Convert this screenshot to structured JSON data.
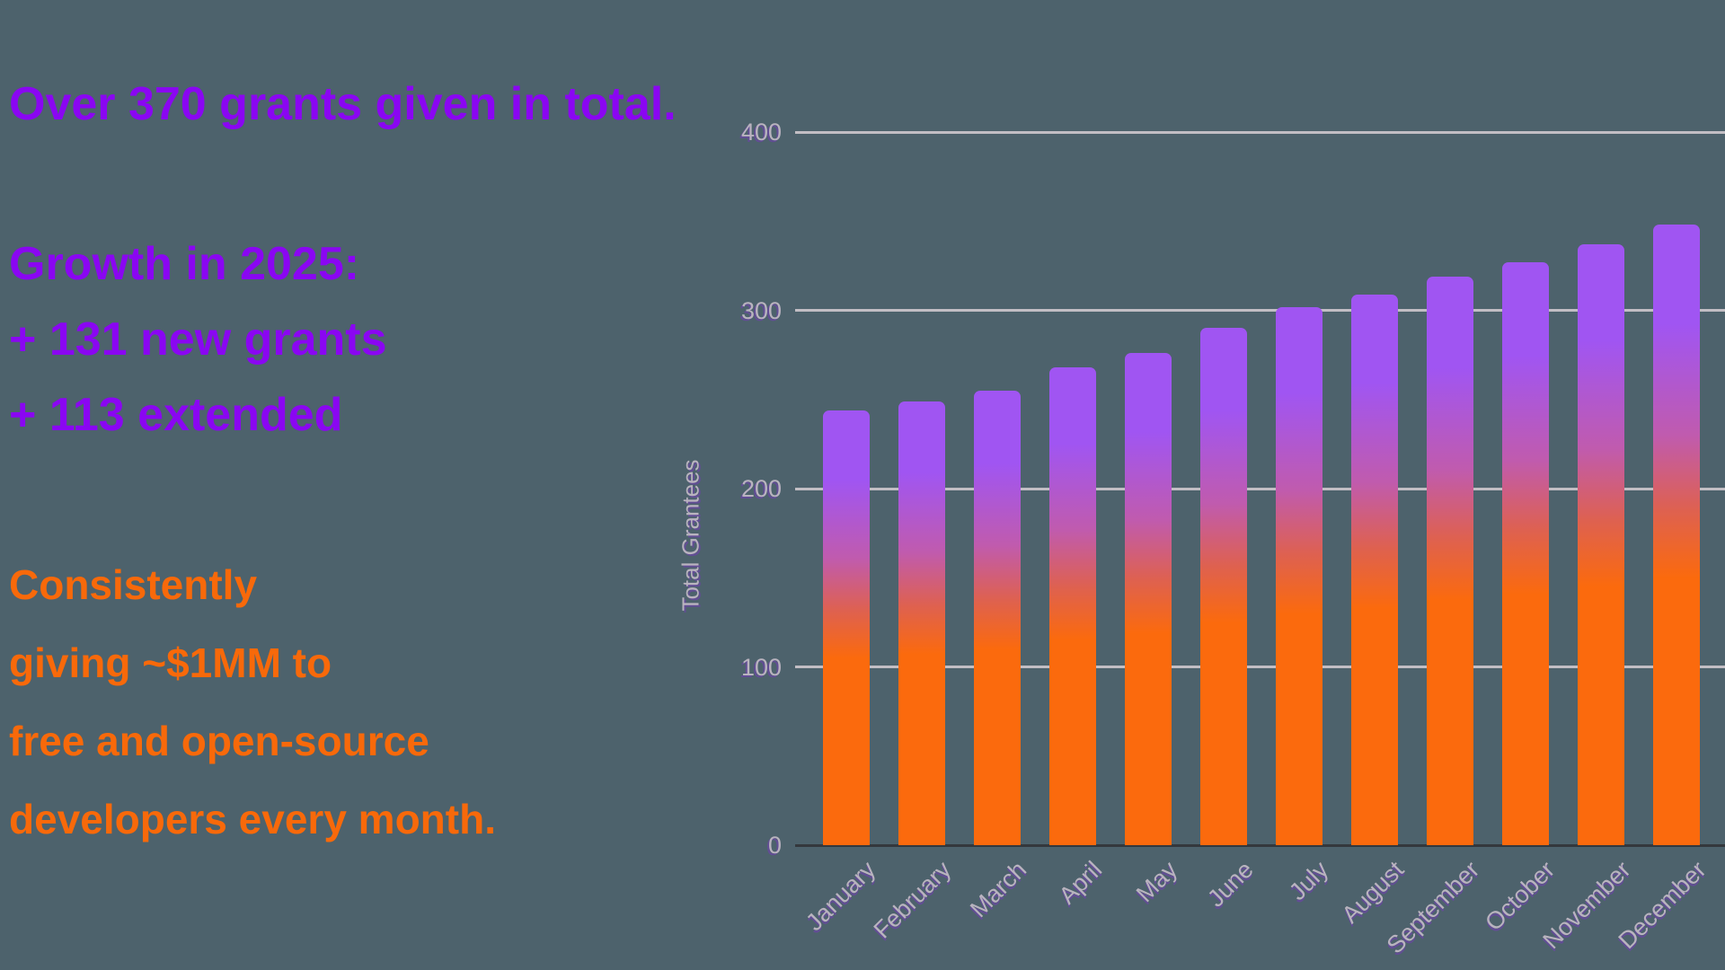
{
  "colors": {
    "background": "#4D626C",
    "purple": "#8A06F2",
    "orange": "#F8690A",
    "tick_text": "#B9B3BF",
    "gridline": "#C2BEC4",
    "axis_line": "#34383D",
    "bar_gradient_top": "#A055F2",
    "bar_gradient_mid": "#C05BAE",
    "bar_gradient_bottom": "#FB6A0D"
  },
  "stats": {
    "total_line": "Over 370 grants given in total.",
    "growth": {
      "heading": "Growth in 2025:",
      "items": [
        "+ 131 new grants",
        "+ 113 extended"
      ]
    },
    "giving_lines": [
      "Consistently",
      "giving ~$1MM to",
      "free and open-source",
      "developers every month."
    ]
  },
  "chart_data": {
    "type": "bar",
    "title": "",
    "xlabel": "",
    "ylabel": "Total Grantees",
    "categories": [
      "January",
      "February",
      "March",
      "April",
      "May",
      "June",
      "July",
      "August",
      "September",
      "October",
      "November",
      "December"
    ],
    "values": [
      244,
      249,
      255,
      268,
      276,
      290,
      302,
      309,
      319,
      327,
      337,
      348
    ],
    "ylim": [
      0,
      400
    ],
    "yticks": [
      0,
      100,
      200,
      300,
      400
    ],
    "grid": true,
    "legend": false
  }
}
